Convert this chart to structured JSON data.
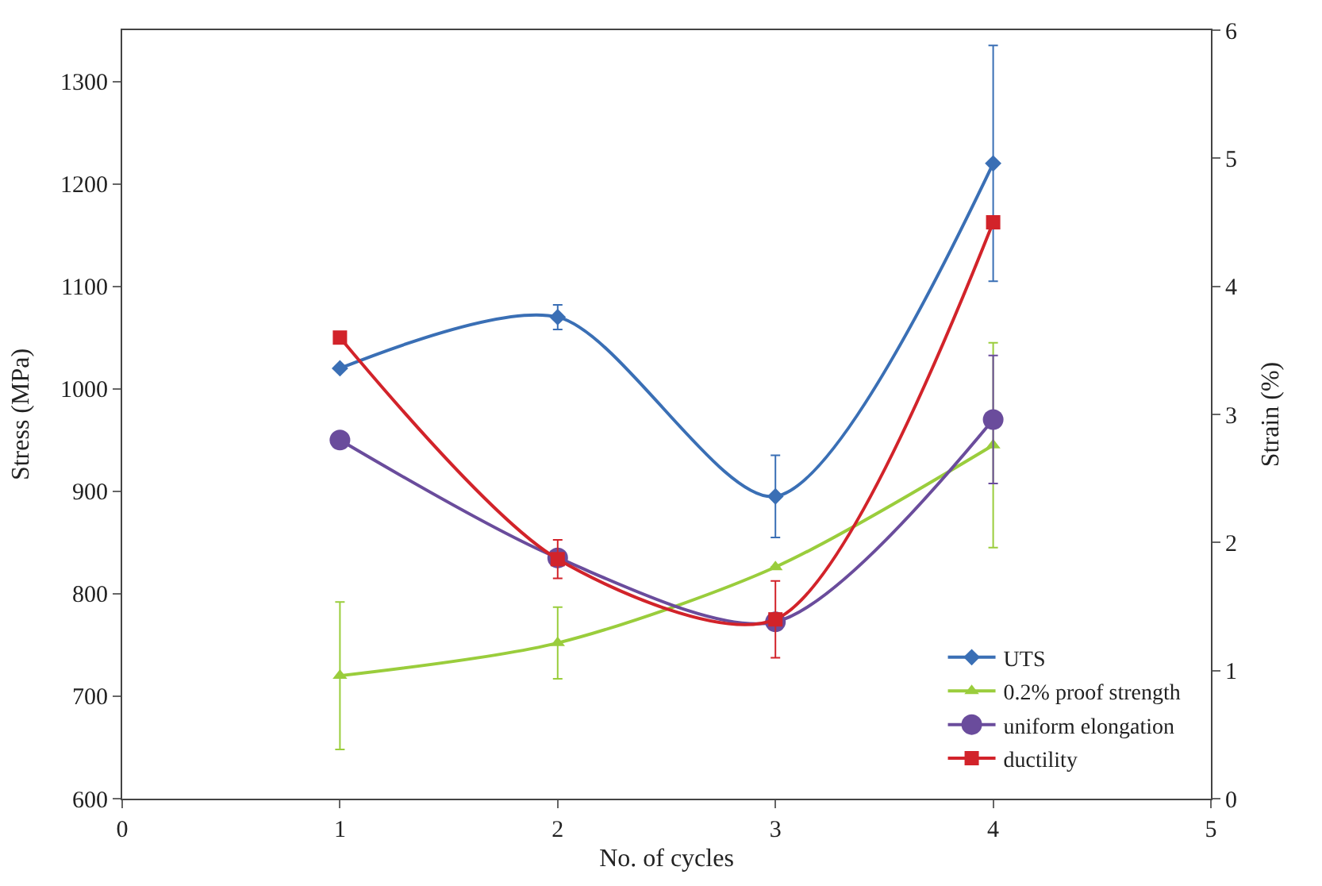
{
  "chart_data": {
    "type": "line",
    "xlabel": "No. of cycles",
    "ylabel": "Stress (MPa)",
    "y2label": "Strain (%)",
    "x": [
      1,
      2,
      3,
      4
    ],
    "xlim": [
      0,
      5
    ],
    "xticks": [
      0,
      1,
      2,
      3,
      4,
      5
    ],
    "ylim": [
      600,
      1350
    ],
    "yticks": [
      600,
      700,
      800,
      900,
      1000,
      1100,
      1200,
      1300
    ],
    "y2lim": [
      0,
      6
    ],
    "y2ticks": [
      0,
      1,
      2,
      3,
      4,
      5,
      6
    ],
    "legend": "bottom right",
    "line_style": "solid",
    "series": [
      {
        "name": "UTS",
        "color": "#3a6fb5",
        "marker": "diamond",
        "values": [
          1020,
          1070,
          895,
          1220
        ],
        "errors": [
          null,
          12,
          40,
          115
        ]
      },
      {
        "name": "0.2% proof strength",
        "color": "#9acd3c",
        "marker": "triangle",
        "values": [
          720,
          752,
          826,
          945
        ],
        "errors": [
          72,
          35,
          null,
          100
        ]
      },
      {
        "name": "uniform elongation",
        "color": "#6a4c9c",
        "marker": "circle",
        "axis": "y2",
        "values": [
          2.8,
          1.88,
          1.38,
          2.96
        ],
        "errors": [
          null,
          null,
          null,
          0.5
        ]
      },
      {
        "name": "ductility",
        "color": "#d2232a",
        "marker": "square",
        "axis": "y2",
        "values": [
          3.6,
          1.87,
          1.4,
          4.5
        ],
        "errors": [
          null,
          0.15,
          0.3,
          null
        ]
      }
    ]
  }
}
